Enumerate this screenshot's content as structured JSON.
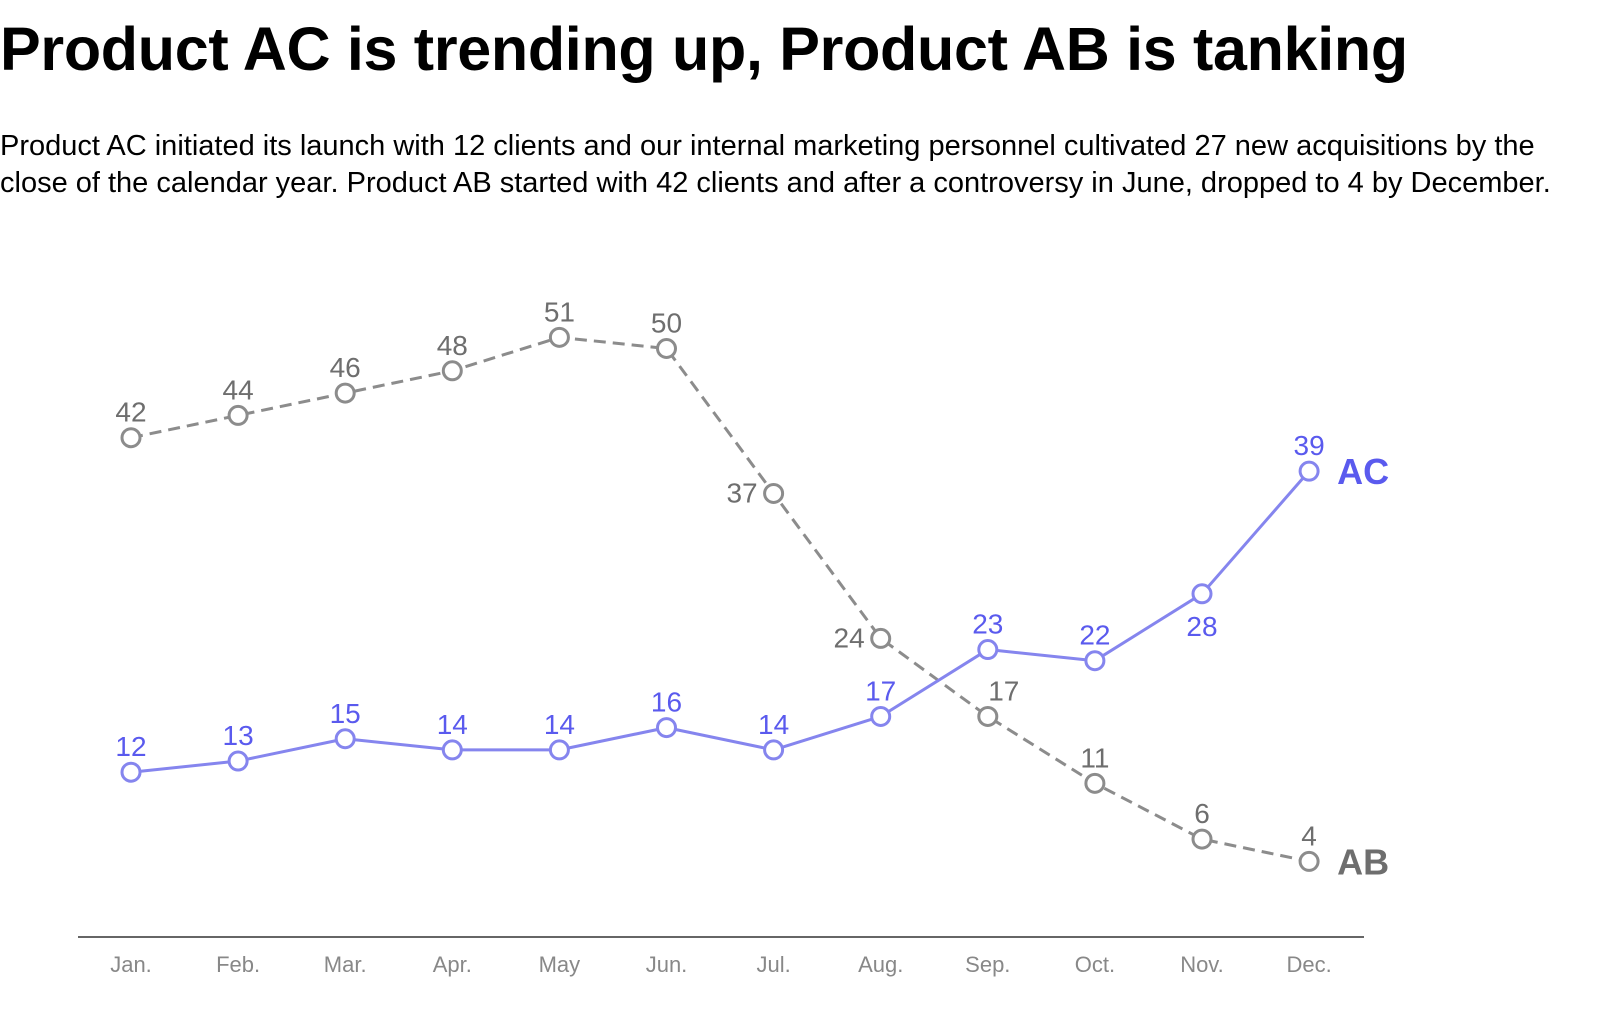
{
  "header": {
    "title": "Product AC is trending up, Product AB is tanking",
    "subtitle": "Product AC initiated its launch with 12 clients and our internal marketing personnel cultivated 27 new acquisitions by the close of the calendar year. Product AB started with 42 clients and after a controversy in June, dropped to 4 by December."
  },
  "chart_data": {
    "type": "line",
    "title": "Product AC is trending up, Product AB is tanking",
    "xlabel": "",
    "ylabel": "",
    "categories": [
      "Jan.",
      "Feb.",
      "Mar.",
      "Apr.",
      "May",
      "Jun.",
      "Jul.",
      "Aug.",
      "Sep.",
      "Oct.",
      "Nov.",
      "Dec."
    ],
    "ylim": [
      0,
      55
    ],
    "grid": false,
    "legend": "direct labels at line ends",
    "series": [
      {
        "name": "AB",
        "color": "#8c8c8c",
        "label_color": "#6e6e6e",
        "style": "dashed",
        "values": [
          42,
          44,
          46,
          48,
          51,
          50,
          37,
          24,
          17,
          11,
          6,
          4
        ]
      },
      {
        "name": "AC",
        "color": "#8585ee",
        "label_color": "#5a5aee",
        "style": "solid",
        "values": [
          12,
          13,
          15,
          14,
          14,
          16,
          14,
          17,
          23,
          22,
          28,
          39
        ]
      }
    ]
  }
}
